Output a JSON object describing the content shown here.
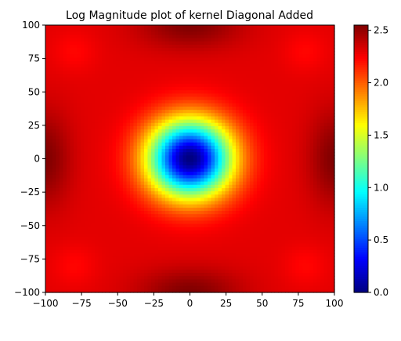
{
  "chart_data": {
    "type": "heatmap",
    "title": "Log Magnitude plot of kernel Diagonal Added",
    "xlabel": "",
    "ylabel": "",
    "xlim": [
      -100,
      100
    ],
    "ylim": [
      -100,
      100
    ],
    "x_ticks": [
      -100,
      -75,
      -50,
      -25,
      0,
      25,
      50,
      75,
      100
    ],
    "y_ticks": [
      100,
      75,
      50,
      25,
      0,
      -25,
      -50,
      -75,
      -100
    ],
    "x_tick_labels": [
      "−100",
      "−75",
      "−50",
      "−25",
      "0",
      "25",
      "50",
      "75",
      "100"
    ],
    "y_tick_labels": [
      "100",
      "75",
      "50",
      "25",
      "0",
      "−25",
      "−50",
      "−75",
      "−100"
    ],
    "colormap": "jet",
    "colorbar": {
      "range": [
        0,
        2.55
      ],
      "ticks": [
        0.0,
        0.5,
        1.0,
        1.5,
        2.0,
        2.5
      ],
      "tick_labels": [
        "0.0",
        "0.5",
        "1.0",
        "1.5",
        "2.0",
        "2.5"
      ]
    },
    "grid": false,
    "description_model": {
      "center_min": 0.0,
      "plateau": 2.3,
      "edge_max": 2.55,
      "center_radius": 30
    }
  }
}
